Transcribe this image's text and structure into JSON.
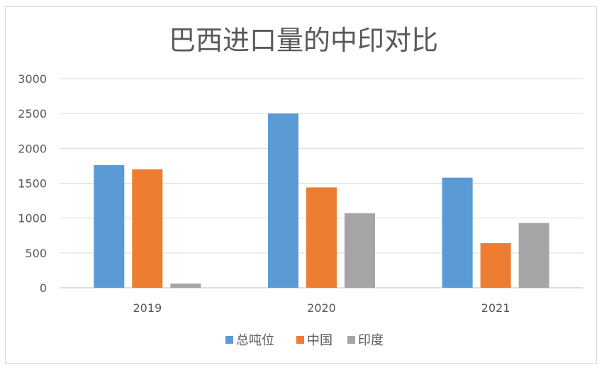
{
  "chart_data": {
    "type": "bar",
    "title": "巴西进口量的中印对比",
    "categories": [
      "2019",
      "2020",
      "2021"
    ],
    "series": [
      {
        "name": "总吨位",
        "values": [
          1760,
          2500,
          1580
        ],
        "color": "#5b9bd5"
      },
      {
        "name": "中国",
        "values": [
          1700,
          1440,
          640
        ],
        "color": "#ed7d31"
      },
      {
        "name": "印度",
        "values": [
          60,
          1070,
          930
        ],
        "color": "#a5a5a5"
      }
    ],
    "ylim": [
      0,
      3000
    ],
    "yticks": [
      0,
      500,
      1000,
      1500,
      2000,
      2500,
      3000
    ],
    "grid": true,
    "legend_position": "bottom",
    "xlabel": "",
    "ylabel": ""
  }
}
